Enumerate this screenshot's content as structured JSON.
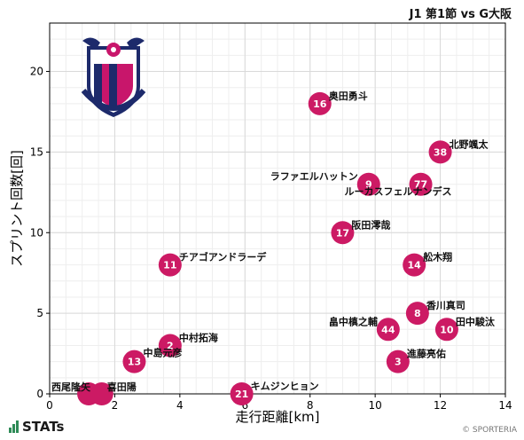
{
  "header": {
    "match": "J1 第1節 vs G大阪"
  },
  "footer": {
    "brand": "STATs",
    "copyright": "© SPORTERIA"
  },
  "colors": {
    "marker": "#cc1a64",
    "grid": "#d9d9d9",
    "minor_grid": "#eeeeee"
  },
  "chart_data": {
    "type": "scatter",
    "xlabel": "走行距離[km]",
    "ylabel": "スプリント回数[回]",
    "xlim": [
      0,
      14
    ],
    "ylim": [
      0,
      23
    ],
    "xticks": [
      0,
      2,
      4,
      6,
      8,
      10,
      12,
      14
    ],
    "yticks": [
      0,
      5,
      10,
      15,
      20
    ],
    "grid": true,
    "points": [
      {
        "number": "16",
        "name": "奥田勇斗",
        "x": 8.3,
        "y": 18
      },
      {
        "number": "38",
        "name": "北野颯太",
        "x": 12.0,
        "y": 15
      },
      {
        "number": "9",
        "name": "ラファエルハットン",
        "x": 9.8,
        "y": 13
      },
      {
        "number": "77",
        "name": "ルーカスフェルナンデス",
        "x": 11.4,
        "y": 13
      },
      {
        "number": "17",
        "name": "阪田澪哉",
        "x": 9.0,
        "y": 10
      },
      {
        "number": "11",
        "name": "チアゴアンドラーデ",
        "x": 3.7,
        "y": 8
      },
      {
        "number": "14",
        "name": "舩木翔",
        "x": 11.2,
        "y": 8
      },
      {
        "number": "8",
        "name": "香川真司",
        "x": 11.3,
        "y": 5
      },
      {
        "number": "44",
        "name": "畠中槙之輔",
        "x": 10.4,
        "y": 4
      },
      {
        "number": "10",
        "name": "田中駿汰",
        "x": 12.2,
        "y": 4
      },
      {
        "number": "2",
        "name": "中村拓海",
        "x": 3.7,
        "y": 3
      },
      {
        "number": "13",
        "name": "中島元彦",
        "x": 2.6,
        "y": 2
      },
      {
        "number": "3",
        "name": "進藤亮佑",
        "x": 10.7,
        "y": 2
      },
      {
        "number": "",
        "name": "西尾隆矢",
        "x": 1.2,
        "y": 0
      },
      {
        "number": "",
        "name": "喜田陽",
        "x": 1.6,
        "y": 0
      },
      {
        "number": "21",
        "name": "キムジンヒョン",
        "x": 5.9,
        "y": 0
      }
    ]
  }
}
